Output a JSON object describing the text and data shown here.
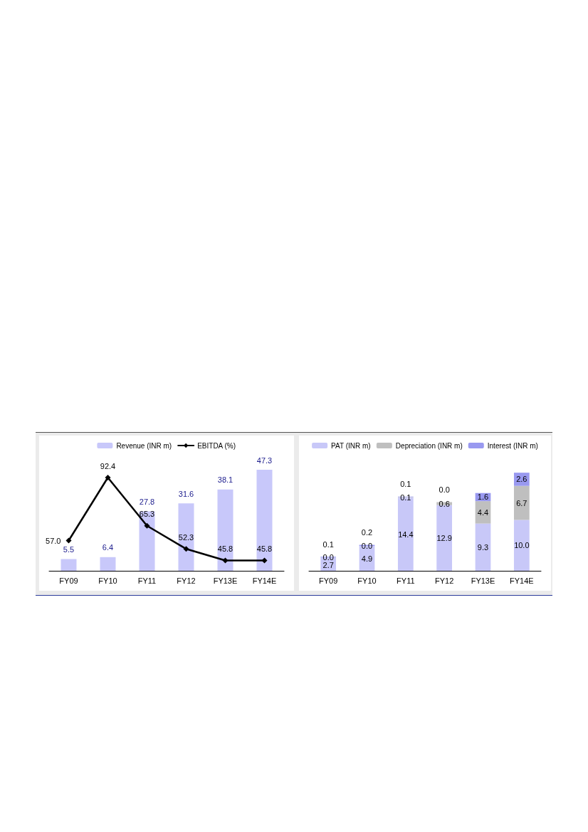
{
  "chart_data": [
    {
      "type": "bar",
      "categories": [
        "FY09",
        "FY10",
        "FY11",
        "FY12",
        "FY13E",
        "FY14E"
      ],
      "legend": "top",
      "marker": "diamond",
      "series": [
        {
          "name": "Revenue (INR m)",
          "color": "#c8c8fa",
          "values": [
            5.5,
            6.4,
            27.8,
            31.6,
            38.1,
            47.3
          ],
          "value_labels": [
            "5.5",
            "6.4",
            "27.8",
            "31.6",
            "38.1",
            "47.3"
          ]
        },
        {
          "name": "EBITDA (%)",
          "type": "line",
          "axis": "y2",
          "color": "#000000",
          "values": [
            57.0,
            92.4,
            65.3,
            52.3,
            45.8,
            45.8
          ],
          "value_labels": [
            "57.0",
            "92.4",
            "65.3",
            "52.3",
            "45.8",
            "45.8"
          ]
        }
      ]
    },
    {
      "type": "bar",
      "stacked": true,
      "categories": [
        "FY09",
        "FY10",
        "FY11",
        "FY12",
        "FY13E",
        "FY14E"
      ],
      "legend": "top",
      "series": [
        {
          "name": "PAT (INR m)",
          "color": "#c8c8f8",
          "values": [
            2.7,
            4.9,
            14.4,
            12.9,
            9.3,
            10.0
          ],
          "value_labels": [
            "2.7",
            "4.9",
            "14.4",
            "12.9",
            "9.3",
            "10.0"
          ]
        },
        {
          "name": "Depreciation (INR m)",
          "color": "#bfbfbf",
          "values": [
            0.0,
            0.0,
            0.1,
            0.6,
            4.4,
            6.7
          ],
          "value_labels": [
            "0.0",
            "0.0",
            "0.1",
            "0.6",
            "4.4",
            "6.7"
          ]
        },
        {
          "name": "Interest (INR m)",
          "color": "#9999f0",
          "values": [
            0.1,
            0.2,
            0.1,
            0.0,
            1.6,
            2.6
          ],
          "value_labels": [
            "0.1",
            "0.2",
            "0.1",
            "0.0",
            "1.6",
            "2.6"
          ]
        }
      ]
    }
  ]
}
